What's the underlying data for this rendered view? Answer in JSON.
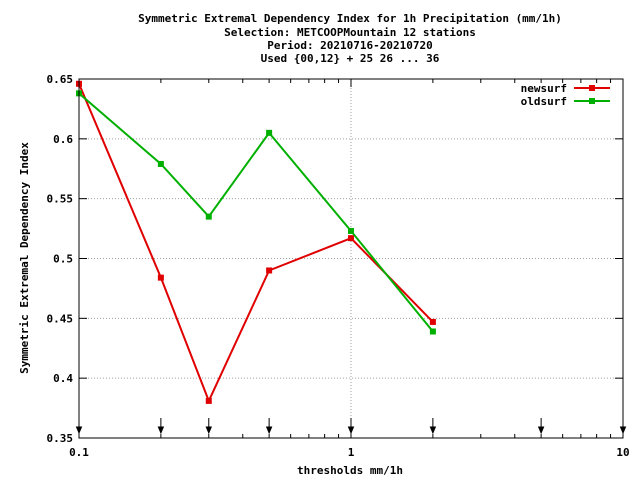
{
  "chart_data": {
    "type": "line",
    "title_lines": [
      "Symmetric Extremal Dependency Index  for 1h Precipitation (mm/1h)",
      "Selection: METCOOPMountain     12 stations",
      "Period: 20210716-20210720",
      "Used {00,12} + 25 26 ... 36"
    ],
    "xlabel": "thresholds mm/1h",
    "ylabel": "Symmetric Extremal Dependency Index",
    "x_scale": "log",
    "xlim": [
      0.1,
      10
    ],
    "ylim": [
      0.35,
      0.65
    ],
    "x_ticks": [
      {
        "value": 0.1,
        "label": "0.1"
      },
      {
        "value": 1,
        "label": "1"
      },
      {
        "value": 10,
        "label": "10"
      }
    ],
    "y_ticks": [
      {
        "value": 0.35,
        "label": "0.35"
      },
      {
        "value": 0.4,
        "label": "0.4"
      },
      {
        "value": 0.45,
        "label": "0.45"
      },
      {
        "value": 0.5,
        "label": "0.5"
      },
      {
        "value": 0.55,
        "label": "0.55"
      },
      {
        "value": 0.6,
        "label": "0.6"
      },
      {
        "value": 0.65,
        "label": "0.65"
      }
    ],
    "grid": true,
    "legend_position": "top-right",
    "threshold_markers": [
      0.1,
      0.2,
      0.3,
      0.5,
      1,
      2,
      5,
      10
    ],
    "series": [
      {
        "name": "newsurf",
        "color": "#e00000",
        "x": [
          0.1,
          0.2,
          0.3,
          0.5,
          1,
          2
        ],
        "y": [
          0.646,
          0.484,
          0.381,
          0.49,
          0.517,
          0.447
        ]
      },
      {
        "name": "oldsurf",
        "color": "#00b000",
        "x": [
          0.1,
          0.2,
          0.3,
          0.5,
          1,
          2
        ],
        "y": [
          0.638,
          0.579,
          0.535,
          0.605,
          0.523,
          0.439
        ]
      }
    ]
  }
}
